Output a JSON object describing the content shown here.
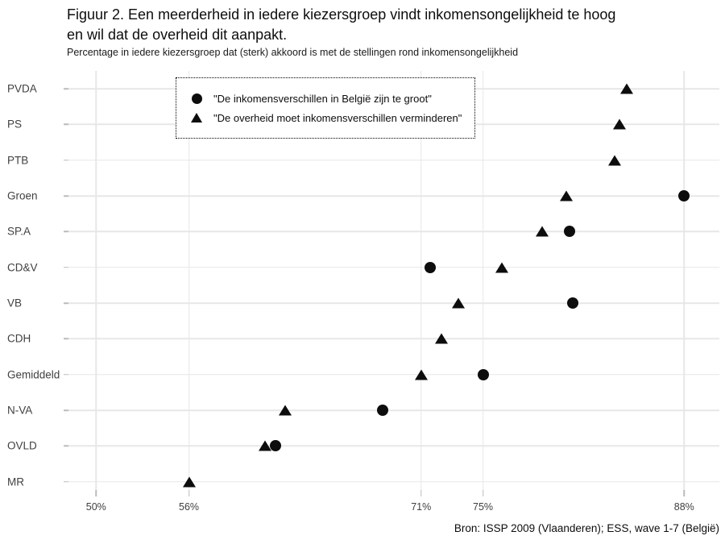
{
  "header": {
    "title": "Figuur 2. Een meerderheid in iedere kiezersgroep vindt inkomensongelijkheid te hoog\nen wil dat de overheid dit aanpakt.",
    "subtitle": "Percentage in iedere kiezersgroep dat (sterk) akkoord is met de stellingen rond inkomensongelijkheid"
  },
  "legend": {
    "items": [
      {
        "marker": "circle",
        "label": "\"De inkomensverschillen in België zijn te groot\""
      },
      {
        "marker": "triangle",
        "label": "\"De overheid moet inkomensverschillen verminderen\""
      }
    ],
    "position": "top-left-inset",
    "border": "dotted"
  },
  "footer": {
    "source": "Bron: ISSP 2009 (Vlaanderen); ESS, wave 1-7 (België)"
  },
  "chart_data": {
    "type": "scatter",
    "subtype": "horizontal-dot-plot",
    "title": "Figuur 2. Een meerderheid in iedere kiezersgroep vindt inkomensongelijkheid te hoog en wil dat de overheid dit aanpakt.",
    "subtitle": "Percentage in iedere kiezersgroep dat (sterk) akkoord is met de stellingen rond inkomensongelijkheid",
    "categories": [
      "PVDA",
      "PS",
      "PTB",
      "Groen",
      "SP.A",
      "CD&V",
      "VB",
      "CDH",
      "Gemiddeld",
      "N-VA",
      "OVLD",
      "MR"
    ],
    "series": [
      {
        "name": "\"De inkomensverschillen in België zijn te groot\"",
        "marker": "circle",
        "values": [
          null,
          null,
          null,
          88,
          80.6,
          71.6,
          80.8,
          null,
          75,
          68.5,
          61.6,
          null
        ]
      },
      {
        "name": "\"De overheid moet inkomensverschillen verminderen\"",
        "marker": "triangle",
        "values": [
          84.3,
          83.8,
          83.5,
          80.4,
          78.8,
          76.2,
          73.4,
          72.3,
          71,
          62.2,
          60.9,
          56
        ]
      }
    ],
    "x_ticks": [
      {
        "value": 50,
        "label": "50%"
      },
      {
        "value": 56,
        "label": "56%"
      },
      {
        "value": 71,
        "label": "71%"
      },
      {
        "value": 75,
        "label": "75%"
      },
      {
        "value": 88,
        "label": "88%"
      }
    ],
    "xlim": [
      48.2,
      90.3
    ],
    "xlabel": "",
    "ylabel": "",
    "grid": true,
    "colors": {
      "marker": "#0d0d0d",
      "grid": "#e7e7e7",
      "axis_text": "#404040",
      "tick": "#bbbbbb",
      "background": "#ffffff"
    }
  }
}
